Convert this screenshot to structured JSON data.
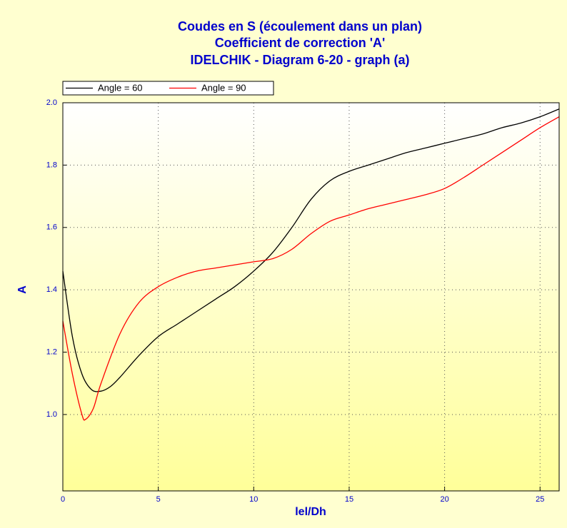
{
  "chart_data": {
    "type": "line",
    "title": "Coudes en S (écoulement dans un plan)",
    "subtitle": "Coefficient de correction 'A'",
    "subtitle2": "IDELCHIK - Diagram 6-20 - graph (a)",
    "xlabel": "lel/Dh",
    "ylabel": "A",
    "xlim": [
      0,
      26
    ],
    "ylim": [
      0.755,
      2.0
    ],
    "xticks": [
      0,
      5,
      10,
      15,
      20,
      25
    ],
    "yticks": [
      {
        "value": 1.0,
        "label": "1.0"
      },
      {
        "value": 1.2,
        "label": "1.2"
      },
      {
        "value": 1.4,
        "label": "1.4"
      },
      {
        "value": 1.6,
        "label": "1.6"
      },
      {
        "value": 1.8,
        "label": "1.8"
      },
      {
        "value": 2.0,
        "label": "2.0"
      }
    ],
    "grid": true,
    "legend": "top-left",
    "series": [
      {
        "name": "Angle = 60",
        "color": "#000000",
        "x": [
          0,
          0.5,
          1,
          1.5,
          2,
          2.5,
          3,
          4,
          5,
          6,
          7,
          8,
          9,
          10,
          11,
          12,
          13,
          14,
          15,
          16,
          17,
          18,
          19,
          20,
          21,
          22,
          23,
          24,
          25,
          26
        ],
        "values": [
          1.46,
          1.25,
          1.13,
          1.08,
          1.075,
          1.09,
          1.12,
          1.19,
          1.25,
          1.29,
          1.33,
          1.37,
          1.41,
          1.46,
          1.52,
          1.6,
          1.69,
          1.75,
          1.78,
          1.8,
          1.82,
          1.84,
          1.855,
          1.87,
          1.885,
          1.9,
          1.92,
          1.935,
          1.955,
          1.98
        ]
      },
      {
        "name": "Angle = 90",
        "color": "#ff0000",
        "x": [
          0,
          0.5,
          1,
          1.2,
          1.6,
          2,
          3,
          4,
          5,
          6,
          7,
          8,
          9,
          10,
          11,
          12,
          13,
          14,
          15,
          16,
          17,
          18,
          19,
          20,
          21,
          22,
          23,
          24,
          25,
          26
        ],
        "values": [
          1.3,
          1.13,
          1.0,
          0.985,
          1.02,
          1.1,
          1.26,
          1.36,
          1.41,
          1.44,
          1.46,
          1.47,
          1.48,
          1.49,
          1.5,
          1.53,
          1.58,
          1.62,
          1.64,
          1.66,
          1.675,
          1.69,
          1.705,
          1.725,
          1.76,
          1.8,
          1.84,
          1.88,
          1.92,
          1.955
        ]
      }
    ]
  }
}
